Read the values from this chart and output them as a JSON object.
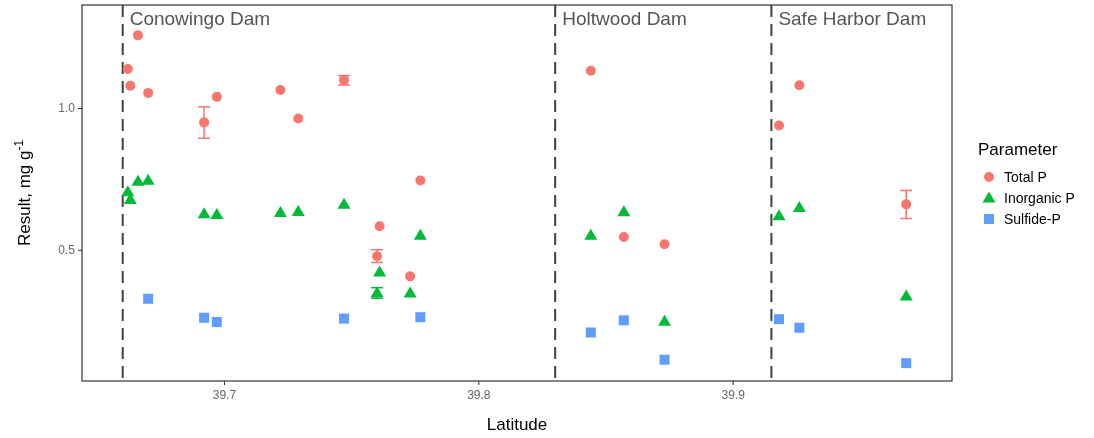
{
  "chart_data": {
    "type": "scatter",
    "xlabel": "Latitude",
    "ylabel": "Result, mg g$^{-1}$",
    "legend_title": "Parameter",
    "legend": "right",
    "grid": false,
    "xlim": [
      39.644,
      39.986
    ],
    "xticks": [
      39.7,
      39.8,
      39.9
    ],
    "ylim": [
      0.039,
      1.365
    ],
    "yticks": [
      0.5,
      {
        "value": 1.0,
        "label": "1.0"
      }
    ],
    "ref_lines": [
      {
        "axis": "x",
        "value": 39.66,
        "label": "Conowingo Dam",
        "line_style": "dashed",
        "color": "#404040"
      },
      {
        "axis": "x",
        "value": 39.83,
        "label": "Holtwood Dam",
        "line_style": "dashed",
        "color": "#404040"
      },
      {
        "axis": "x",
        "value": 39.915,
        "label": "Safe Harbor Dam",
        "line_style": "dashed",
        "color": "#404040"
      }
    ],
    "series": [
      {
        "name": "Total P",
        "color": "#f8766d",
        "marker": "circle",
        "x": [
          39.662,
          39.666,
          39.663,
          39.67,
          39.692,
          39.697,
          39.722,
          39.729,
          39.747,
          39.761,
          39.76,
          39.773,
          39.777,
          39.844,
          39.857,
          39.873,
          39.918,
          39.926,
          39.968
        ],
        "values": [
          1.139,
          1.258,
          1.08,
          1.055,
          0.951,
          1.041,
          1.065,
          0.965,
          1.1,
          0.585,
          0.479,
          0.408,
          0.746,
          1.133,
          0.547,
          0.521,
          0.94,
          1.082,
          0.662
        ],
        "errors": [
          null,
          null,
          null,
          null,
          [
            0.895,
            1.006
          ],
          null,
          null,
          null,
          [
            1.083,
            1.116
          ],
          null,
          [
            0.457,
            0.502
          ],
          null,
          null,
          null,
          null,
          null,
          null,
          null,
          [
            0.612,
            0.711
          ]
        ]
      },
      {
        "name": "Inorganic P",
        "color": "#00ba38",
        "marker": "triangle",
        "x": [
          39.662,
          39.663,
          39.666,
          39.67,
          39.692,
          39.697,
          39.722,
          39.729,
          39.747,
          39.761,
          39.76,
          39.773,
          39.777,
          39.844,
          39.857,
          39.873,
          39.918,
          39.926,
          39.968
        ],
        "values": [
          0.706,
          0.679,
          0.743,
          0.747,
          0.629,
          0.626,
          0.633,
          0.637,
          0.662,
          0.423,
          0.35,
          0.349,
          0.553,
          0.553,
          0.636,
          0.25,
          0.622,
          0.651,
          0.339
        ],
        "errors": [
          null,
          null,
          null,
          null,
          null,
          null,
          null,
          null,
          null,
          null,
          [
            0.331,
            0.368
          ],
          null,
          null,
          null,
          null,
          null,
          null,
          null,
          null
        ]
      },
      {
        "name": "Sulfide-P",
        "color": "#619cff",
        "marker": "square",
        "x": [
          39.67,
          39.692,
          39.697,
          39.747,
          39.777,
          39.844,
          39.857,
          39.873,
          39.918,
          39.926,
          39.968
        ],
        "values": [
          0.329,
          0.262,
          0.247,
          0.259,
          0.264,
          0.21,
          0.253,
          0.114,
          0.257,
          0.227,
          0.102
        ]
      }
    ]
  }
}
